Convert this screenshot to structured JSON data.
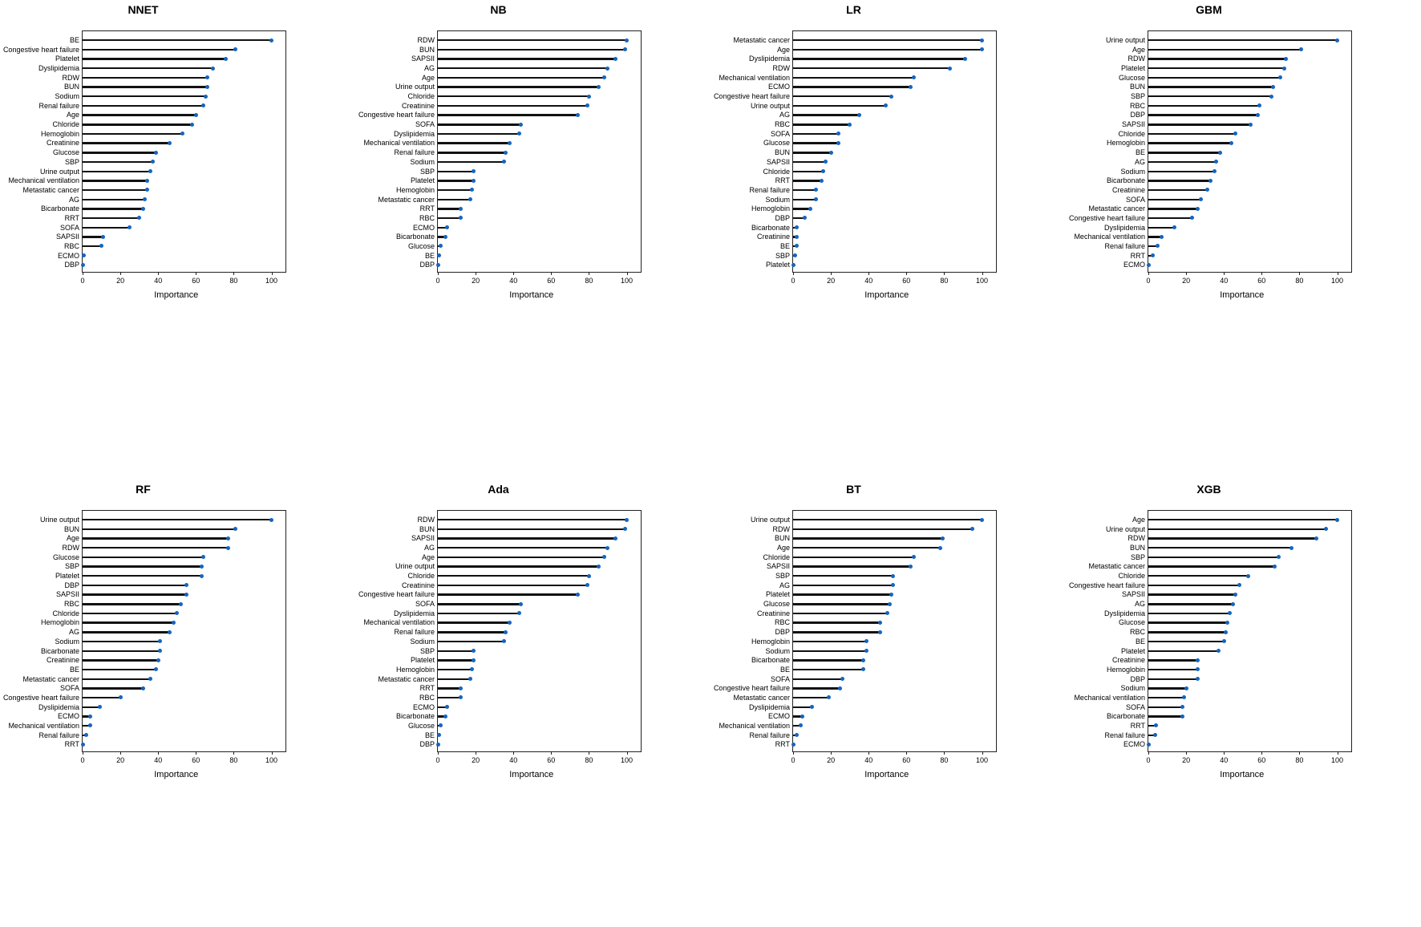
{
  "chart_data": [
    {
      "type": "lollipop",
      "title": "NNET",
      "xlabel": "Importance",
      "xlim": [
        0,
        107
      ],
      "xticks": [
        0,
        20,
        40,
        60,
        80,
        100
      ],
      "categories": [
        "BE",
        "Congestive heart failure",
        "Platelet",
        "Dyslipidemia",
        "RDW",
        "BUN",
        "Sodium",
        "Renal failure",
        "Age",
        "Chloride",
        "Hemoglobin",
        "Creatinine",
        "Glucose",
        "SBP",
        "Urine output",
        "Mechanical ventilation",
        "Metastatic cancer",
        "AG",
        "Bicarbonate",
        "RRT",
        "SOFA",
        "SAPSII",
        "RBC",
        "ECMO",
        "DBP"
      ],
      "values": [
        100,
        81,
        76,
        69,
        66,
        66,
        65,
        64,
        60,
        58,
        53,
        46,
        39,
        37,
        36,
        34,
        34,
        33,
        32,
        30,
        25,
        11,
        10,
        0.5,
        0
      ]
    },
    {
      "type": "lollipop",
      "title": "NB",
      "xlabel": "Importance",
      "xlim": [
        0,
        107
      ],
      "xticks": [
        0,
        20,
        40,
        60,
        80,
        100
      ],
      "categories": [
        "RDW",
        "BUN",
        "SAPSII",
        "AG",
        "Age",
        "Urine output",
        "Chloride",
        "Creatinine",
        "Congestive heart failure",
        "SOFA",
        "Dyslipidemia",
        "Mechanical ventilation",
        "Renal failure",
        "Sodium",
        "SBP",
        "Platelet",
        "Hemoglobin",
        "Metastatic cancer",
        "RRT",
        "RBC",
        "ECMO",
        "Bicarbonate",
        "Glucose",
        "BE",
        "DBP"
      ],
      "values": [
        100,
        99,
        94,
        90,
        88,
        85,
        80,
        79,
        74,
        44,
        43,
        38,
        36,
        35,
        19,
        19,
        18,
        17,
        12,
        12,
        5,
        4,
        1.5,
        0.5,
        0
      ]
    },
    {
      "type": "lollipop",
      "title": "LR",
      "xlabel": "Importance",
      "xlim": [
        0,
        107
      ],
      "xticks": [
        0,
        20,
        40,
        60,
        80,
        100
      ],
      "categories": [
        "Metastatic cancer",
        "Age",
        "Dyslipidemia",
        "RDW",
        "Mechanical ventilation",
        "ECMO",
        "Congestive heart failure",
        "Urine output",
        "AG",
        "RBC",
        "SOFA",
        "Glucose",
        "BUN",
        "SAPSII",
        "Chloride",
        "RRT",
        "Renal failure",
        "Sodium",
        "Hemoglobin",
        "DBP",
        "Bicarbonate",
        "Creatinine",
        "BE",
        "SBP",
        "Platelet"
      ],
      "values": [
        100,
        100,
        91,
        83,
        64,
        62,
        52,
        49,
        35,
        30,
        24,
        24,
        20,
        17,
        16,
        15,
        12,
        12,
        9,
        6,
        2,
        2,
        2,
        1,
        0
      ]
    },
    {
      "type": "lollipop",
      "title": "GBM",
      "xlabel": "Importance",
      "xlim": [
        0,
        107
      ],
      "xticks": [
        0,
        20,
        40,
        60,
        80,
        100
      ],
      "categories": [
        "Urine output",
        "Age",
        "RDW",
        "Platelet",
        "Glucose",
        "BUN",
        "SBP",
        "RBC",
        "DBP",
        "SAPSII",
        "Chloride",
        "Hemoglobin",
        "BE",
        "AG",
        "Sodium",
        "Bicarbonate",
        "Creatinine",
        "SOFA",
        "Metastatic cancer",
        "Congestive heart failure",
        "Dyslipidemia",
        "Mechanical ventilation",
        "Renal failure",
        "RRT",
        "ECMO"
      ],
      "values": [
        100,
        81,
        73,
        72,
        70,
        66,
        65,
        59,
        58,
        54,
        46,
        44,
        38,
        36,
        35,
        33,
        31,
        28,
        26,
        23,
        14,
        7,
        5,
        2.5,
        0
      ]
    },
    {
      "type": "lollipop",
      "title": "RF",
      "xlabel": "Importance",
      "xlim": [
        0,
        107
      ],
      "xticks": [
        0,
        20,
        40,
        60,
        80,
        100
      ],
      "categories": [
        "Urine output",
        "BUN",
        "Age",
        "RDW",
        "Glucose",
        "SBP",
        "Platelet",
        "DBP",
        "SAPSII",
        "RBC",
        "Chloride",
        "Hemoglobin",
        "AG",
        "Sodium",
        "Bicarbonate",
        "Creatinine",
        "BE",
        "Metastatic cancer",
        "SOFA",
        "Congestive heart failure",
        "Dyslipidemia",
        "ECMO",
        "Mechanical ventilation",
        "Renal failure",
        "RRT"
      ],
      "values": [
        100,
        81,
        77,
        77,
        64,
        63,
        63,
        55,
        55,
        52,
        50,
        48,
        46,
        41,
        41,
        40,
        39,
        36,
        32,
        20,
        9,
        4,
        4,
        2,
        0
      ]
    },
    {
      "type": "lollipop",
      "title": "Ada",
      "xlabel": "Importance",
      "xlim": [
        0,
        107
      ],
      "xticks": [
        0,
        20,
        40,
        60,
        80,
        100
      ],
      "categories": [
        "RDW",
        "BUN",
        "SAPSII",
        "AG",
        "Age",
        "Urine output",
        "Chloride",
        "Creatinine",
        "Congestive heart failure",
        "SOFA",
        "Dyslipidemia",
        "Mechanical ventilation",
        "Renal failure",
        "Sodium",
        "SBP",
        "Platelet",
        "Hemoglobin",
        "Metastatic cancer",
        "RRT",
        "RBC",
        "ECMO",
        "Bicarbonate",
        "Glucose",
        "BE",
        "DBP"
      ],
      "values": [
        100,
        99,
        94,
        90,
        88,
        85,
        80,
        79,
        74,
        44,
        43,
        38,
        36,
        35,
        19,
        19,
        18,
        17,
        12,
        12,
        5,
        4,
        1.5,
        0.5,
        0
      ]
    },
    {
      "type": "lollipop",
      "title": "BT",
      "xlabel": "Importance",
      "xlim": [
        0,
        107
      ],
      "xticks": [
        0,
        20,
        40,
        60,
        80,
        100
      ],
      "categories": [
        "Urine output",
        "RDW",
        "BUN",
        "Age",
        "Chloride",
        "SAPSII",
        "SBP",
        "AG",
        "Platelet",
        "Glucose",
        "Creatinine",
        "RBC",
        "DBP",
        "Hemoglobin",
        "Sodium",
        "Bicarbonate",
        "BE",
        "SOFA",
        "Congestive heart failure",
        "Metastatic cancer",
        "Dyslipidemia",
        "ECMO",
        "Mechanical ventilation",
        "Renal failure",
        "RRT"
      ],
      "values": [
        100,
        95,
        79,
        78,
        64,
        62,
        53,
        53,
        52,
        51,
        50,
        46,
        46,
        39,
        39,
        37,
        37,
        26,
        25,
        19,
        10,
        5,
        4,
        2,
        0
      ]
    },
    {
      "type": "lollipop",
      "title": "XGB",
      "xlabel": "Importance",
      "xlim": [
        0,
        107
      ],
      "xticks": [
        0,
        20,
        40,
        60,
        80,
        100
      ],
      "categories": [
        "Age",
        "Urine output",
        "RDW",
        "BUN",
        "SBP",
        "Metastatic cancer",
        "Chloride",
        "Congestive heart failure",
        "SAPSII",
        "AG",
        "Dyslipidemia",
        "Glucose",
        "RBC",
        "BE",
        "Platelet",
        "Creatinine",
        "Hemoglobin",
        "DBP",
        "Sodium",
        "Mechanical ventilation",
        "SOFA",
        "Bicarbonate",
        "RRT",
        "Renal failure",
        "ECMO"
      ],
      "values": [
        100,
        94,
        89,
        76,
        69,
        67,
        53,
        48,
        46,
        45,
        43,
        42,
        41,
        40,
        37,
        26,
        26,
        26,
        20,
        19,
        18,
        18,
        4,
        3.5,
        0
      ]
    }
  ]
}
